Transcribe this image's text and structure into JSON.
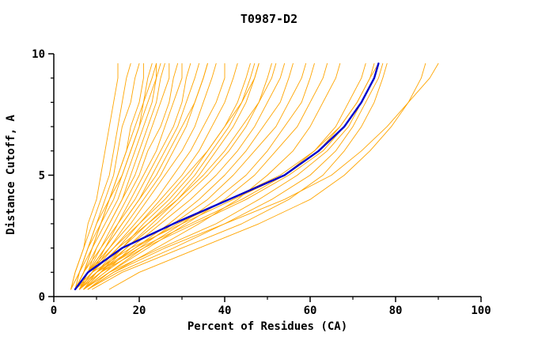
{
  "page": {
    "background": "#ffffff"
  },
  "chart_data": {
    "type": "line",
    "title": "T0987-D2",
    "xlabel": "Percent of Residues (CA)",
    "ylabel": "Distance Cutoff, A",
    "xlim": [
      0,
      100
    ],
    "ylim": [
      0,
      10
    ],
    "x_major_ticks": [
      0,
      20,
      40,
      60,
      80,
      100
    ],
    "x_minor_ticks": [
      10,
      30,
      50,
      70,
      90
    ],
    "y_major_ticks": [
      0,
      5,
      10
    ],
    "y_minor_ticks": [
      1,
      2,
      3,
      4,
      6,
      7,
      8,
      9
    ],
    "grid": false,
    "legend": "none",
    "colors": {
      "predictions": "#FFA500",
      "highlight": "#0000CC",
      "axis": "#000000"
    },
    "y_grid": [
      0.3,
      1,
      2,
      3,
      4,
      5,
      6,
      7,
      8,
      9,
      9.6
    ],
    "highlight_series": {
      "name": "highlighted-model",
      "xs": [
        5,
        8,
        16,
        28,
        41,
        54,
        62,
        68,
        72,
        75,
        76
      ]
    },
    "prediction_series": [
      [
        4,
        5,
        7,
        8,
        10,
        11,
        12,
        13,
        14,
        15,
        15
      ],
      [
        4,
        5,
        7,
        9,
        11,
        13,
        14,
        15,
        16,
        17,
        18
      ],
      [
        5,
        6,
        8,
        10,
        12,
        14,
        15,
        16,
        18,
        19,
        20
      ],
      [
        5,
        6,
        8,
        10,
        13,
        15,
        17,
        18,
        20,
        21,
        21
      ],
      [
        4,
        6,
        9,
        11,
        14,
        16,
        18,
        20,
        21,
        22,
        23
      ],
      [
        5,
        7,
        9,
        12,
        15,
        17,
        19,
        21,
        23,
        24,
        24
      ],
      [
        5,
        7,
        10,
        13,
        16,
        18,
        20,
        22,
        24,
        25,
        26
      ],
      [
        6,
        8,
        10,
        13,
        16,
        19,
        21,
        23,
        25,
        27,
        27
      ],
      [
        5,
        7,
        11,
        14,
        17,
        20,
        22,
        25,
        27,
        28,
        29
      ],
      [
        6,
        8,
        11,
        15,
        18,
        21,
        24,
        26,
        28,
        30,
        30
      ],
      [
        5,
        8,
        12,
        15,
        19,
        22,
        25,
        28,
        30,
        31,
        32
      ],
      [
        6,
        9,
        12,
        16,
        20,
        23,
        26,
        29,
        31,
        33,
        34
      ],
      [
        6,
        9,
        13,
        17,
        21,
        25,
        28,
        31,
        33,
        35,
        36
      ],
      [
        5,
        8,
        13,
        18,
        22,
        26,
        30,
        33,
        35,
        37,
        38
      ],
      [
        6,
        9,
        14,
        19,
        24,
        28,
        32,
        35,
        38,
        40,
        40
      ],
      [
        7,
        10,
        15,
        20,
        25,
        30,
        34,
        37,
        40,
        42,
        43
      ],
      [
        6,
        10,
        16,
        21,
        27,
        32,
        36,
        40,
        43,
        45,
        46
      ],
      [
        7,
        11,
        17,
        23,
        29,
        34,
        38,
        42,
        45,
        47,
        48
      ],
      [
        6,
        10,
        17,
        24,
        30,
        36,
        41,
        45,
        48,
        50,
        51
      ],
      [
        7,
        12,
        18,
        25,
        32,
        38,
        43,
        47,
        50,
        53,
        54
      ],
      [
        6,
        11,
        19,
        27,
        34,
        40,
        45,
        49,
        53,
        55,
        56
      ],
      [
        7,
        12,
        20,
        28,
        36,
        42,
        47,
        52,
        55,
        58,
        59
      ],
      [
        8,
        13,
        21,
        30,
        38,
        45,
        50,
        54,
        58,
        60,
        61
      ],
      [
        7,
        13,
        22,
        31,
        40,
        47,
        52,
        57,
        60,
        63,
        64
      ],
      [
        8,
        14,
        24,
        34,
        43,
        50,
        56,
        60,
        63,
        66,
        67
      ],
      [
        6,
        10,
        20,
        32,
        44,
        54,
        61,
        66,
        69,
        72,
        73
      ],
      [
        5,
        9,
        18,
        30,
        42,
        54,
        62,
        67,
        71,
        74,
        75
      ],
      [
        5,
        10,
        19,
        29,
        41,
        53,
        61,
        67,
        71,
        74,
        76
      ],
      [
        6,
        11,
        21,
        33,
        45,
        55,
        63,
        68,
        72,
        75,
        76
      ],
      [
        7,
        13,
        25,
        38,
        48,
        57,
        64,
        69,
        72,
        75,
        76
      ],
      [
        8,
        15,
        28,
        40,
        51,
        60,
        66,
        70,
        73,
        76,
        77
      ],
      [
        9,
        16,
        30,
        44,
        55,
        63,
        68,
        72,
        75,
        77,
        78
      ],
      [
        13,
        20,
        34,
        48,
        60,
        68,
        74,
        79,
        83,
        86,
        87
      ],
      [
        8,
        14,
        26,
        40,
        54,
        65,
        72,
        78,
        83,
        88,
        90
      ],
      [
        4,
        6,
        8,
        11,
        13,
        15,
        17,
        19,
        21,
        23,
        24
      ],
      [
        5,
        7,
        9,
        11,
        13,
        16,
        18,
        20,
        22,
        24,
        25
      ],
      [
        6,
        8,
        12,
        16,
        20,
        24,
        27,
        30,
        33,
        35,
        36
      ],
      [
        7,
        11,
        16,
        22,
        28,
        33,
        37,
        41,
        44,
        46,
        47
      ],
      [
        5,
        8,
        14,
        20,
        26,
        31,
        36,
        40,
        44,
        47,
        48
      ],
      [
        6,
        9,
        15,
        22,
        29,
        35,
        40,
        44,
        48,
        51,
        52
      ]
    ]
  }
}
